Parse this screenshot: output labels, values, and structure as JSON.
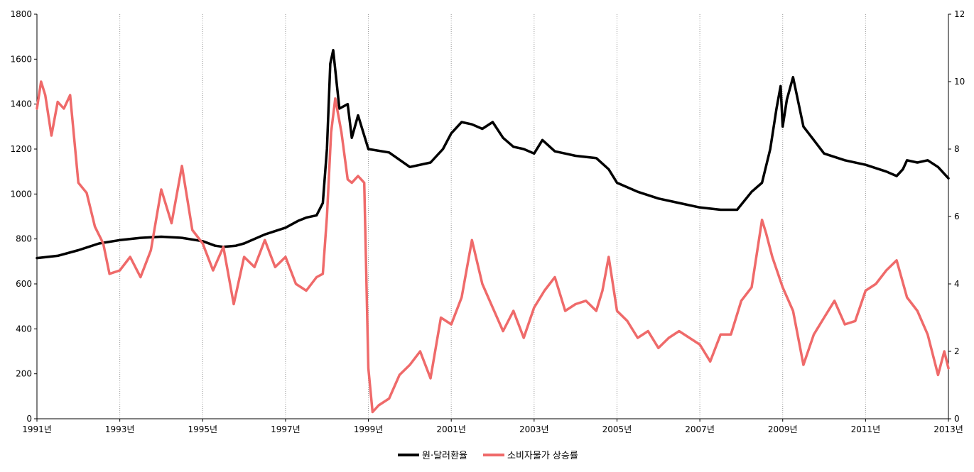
{
  "chart_data": {
    "type": "line",
    "title": "",
    "xlabel": "",
    "ylabel": "",
    "y2label": "",
    "x_tick_labels": [
      "1991년",
      "1993년",
      "1995년",
      "1997년",
      "1999년",
      "2001년",
      "2003년",
      "2005년",
      "2007년",
      "2009년",
      "2011년",
      "2013년"
    ],
    "x_range": [
      1991.0,
      2013.0
    ],
    "ylim": [
      0,
      1800
    ],
    "y_ticks": [
      0,
      200,
      400,
      600,
      800,
      1000,
      1200,
      1400,
      1600,
      1800
    ],
    "y2lim": [
      0,
      12
    ],
    "y2_ticks": [
      0,
      2,
      4,
      6,
      8,
      10,
      12
    ],
    "grid": "vertical-dotted-at-odd-years",
    "legend_position": "bottom-center",
    "series": [
      {
        "name": "원·달러환율",
        "axis": "left",
        "color": "#000000",
        "x": [
          1991.0,
          1991.5,
          1992.0,
          1992.5,
          1993.0,
          1993.5,
          1994.0,
          1994.5,
          1995.0,
          1995.3,
          1995.5,
          1995.8,
          1996.0,
          1996.5,
          1997.0,
          1997.3,
          1997.5,
          1997.75,
          1997.9,
          1998.0,
          1998.08,
          1998.15,
          1998.3,
          1998.5,
          1998.6,
          1998.75,
          1998.9,
          1999.0,
          1999.5,
          2000.0,
          2000.5,
          2000.8,
          2001.0,
          2001.25,
          2001.5,
          2001.75,
          2002.0,
          2002.25,
          2002.5,
          2002.75,
          2003.0,
          2003.2,
          2003.5,
          2003.75,
          2004.0,
          2004.5,
          2004.8,
          2005.0,
          2005.5,
          2006.0,
          2006.5,
          2007.0,
          2007.5,
          2007.9,
          2008.25,
          2008.5,
          2008.7,
          2008.85,
          2008.95,
          2009.0,
          2009.1,
          2009.25,
          2009.5,
          2009.75,
          2010.0,
          2010.5,
          2011.0,
          2011.5,
          2011.75,
          2011.9,
          2012.0,
          2012.25,
          2012.5,
          2012.75,
          2013.0
        ],
        "values": [
          715,
          725,
          750,
          780,
          795,
          805,
          810,
          805,
          790,
          770,
          765,
          770,
          780,
          820,
          850,
          880,
          895,
          905,
          960,
          1200,
          1580,
          1640,
          1380,
          1400,
          1250,
          1350,
          1260,
          1200,
          1185,
          1120,
          1140,
          1200,
          1270,
          1320,
          1310,
          1290,
          1320,
          1250,
          1210,
          1200,
          1180,
          1240,
          1190,
          1180,
          1170,
          1160,
          1110,
          1050,
          1010,
          980,
          960,
          940,
          930,
          930,
          1010,
          1050,
          1200,
          1380,
          1480,
          1300,
          1420,
          1520,
          1300,
          1240,
          1180,
          1150,
          1130,
          1100,
          1080,
          1110,
          1150,
          1140,
          1150,
          1120,
          1070
        ]
      },
      {
        "name": "소비자물가 상승률",
        "axis": "right",
        "color": "#ef6a6a",
        "x": [
          1991.0,
          1991.1,
          1991.2,
          1991.35,
          1991.5,
          1991.65,
          1991.8,
          1992.0,
          1992.2,
          1992.4,
          1992.6,
          1992.75,
          1993.0,
          1993.25,
          1993.5,
          1993.75,
          1994.0,
          1994.25,
          1994.5,
          1994.75,
          1995.0,
          1995.25,
          1995.5,
          1995.75,
          1996.0,
          1996.25,
          1996.5,
          1996.75,
          1997.0,
          1997.25,
          1997.5,
          1997.75,
          1997.9,
          1998.0,
          1998.1,
          1998.2,
          1998.35,
          1998.5,
          1998.6,
          1998.75,
          1998.9,
          1999.0,
          1999.1,
          1999.25,
          1999.5,
          1999.75,
          2000.0,
          2000.25,
          2000.5,
          2000.75,
          2001.0,
          2001.25,
          2001.5,
          2001.75,
          2002.0,
          2002.25,
          2002.5,
          2002.75,
          2003.0,
          2003.25,
          2003.5,
          2003.75,
          2004.0,
          2004.25,
          2004.5,
          2004.65,
          2004.8,
          2005.0,
          2005.25,
          2005.5,
          2005.75,
          2006.0,
          2006.25,
          2006.5,
          2006.75,
          2007.0,
          2007.25,
          2007.5,
          2007.75,
          2008.0,
          2008.25,
          2008.5,
          2008.6,
          2008.75,
          2009.0,
          2009.25,
          2009.5,
          2009.75,
          2010.0,
          2010.25,
          2010.5,
          2010.75,
          2011.0,
          2011.25,
          2011.5,
          2011.75,
          2012.0,
          2012.25,
          2012.5,
          2012.75,
          2012.9,
          2013.0
        ],
        "values": [
          9.2,
          10.0,
          9.6,
          8.4,
          9.4,
          9.2,
          9.6,
          7.0,
          6.7,
          5.7,
          5.2,
          4.3,
          4.4,
          4.8,
          4.2,
          5.0,
          6.8,
          5.8,
          7.5,
          5.6,
          5.2,
          4.4,
          5.1,
          3.4,
          4.8,
          4.5,
          5.3,
          4.5,
          4.8,
          4.0,
          3.8,
          4.2,
          4.3,
          6.0,
          8.5,
          9.5,
          8.5,
          7.1,
          7.0,
          7.2,
          7.0,
          1.5,
          0.2,
          0.4,
          0.6,
          1.3,
          1.6,
          2.0,
          1.2,
          3.0,
          2.8,
          3.6,
          5.3,
          4.0,
          3.3,
          2.6,
          3.2,
          2.4,
          3.3,
          3.8,
          4.2,
          3.2,
          3.4,
          3.5,
          3.2,
          3.8,
          4.8,
          3.2,
          2.9,
          2.4,
          2.6,
          2.1,
          2.4,
          2.6,
          2.4,
          2.2,
          1.7,
          2.5,
          2.5,
          3.5,
          3.9,
          5.9,
          5.5,
          4.8,
          3.9,
          3.2,
          1.6,
          2.5,
          3.0,
          3.5,
          2.8,
          2.9,
          3.8,
          4.0,
          4.4,
          4.7,
          3.6,
          3.2,
          2.5,
          1.3,
          2.0,
          1.5
        ]
      }
    ]
  }
}
